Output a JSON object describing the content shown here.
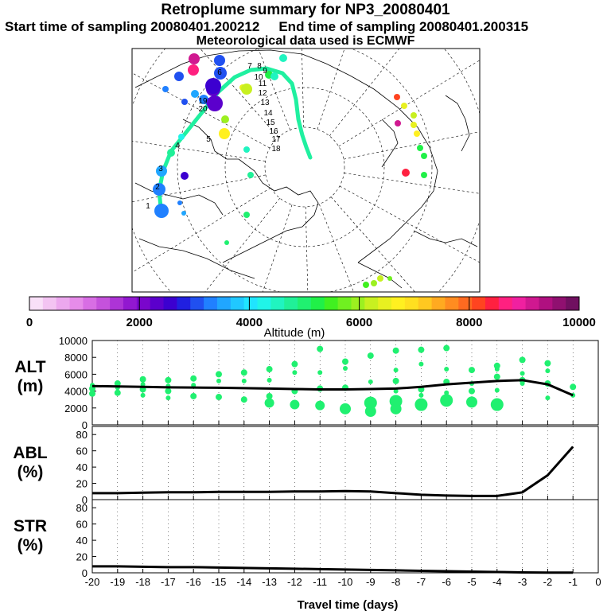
{
  "header": {
    "title": "Retroplume summary for NP3_20080401",
    "start_label": "Start time of sampling 20080401.200212",
    "end_label": "End time of sampling 20080401.200315",
    "met_label": "Meteorological data used is ECMWF"
  },
  "colorbar": {
    "ticks": [
      "0",
      "2000",
      "4000",
      "6000",
      "8000",
      "10000"
    ],
    "label": "Altitude (m)",
    "colors": [
      "#f9e0f8",
      "#f3c4f2",
      "#eca8ee",
      "#e68ce9",
      "#d86ee4",
      "#c552dc",
      "#ad34d6",
      "#9218d0",
      "#7a06cc",
      "#5b00cc",
      "#3c00d0",
      "#2020e0",
      "#2050f0",
      "#2080ff",
      "#20a6ff",
      "#20c8ff",
      "#20e4ff",
      "#20f4e8",
      "#20f4c0",
      "#20f098",
      "#20f070",
      "#20f048",
      "#40f020",
      "#70f020",
      "#9cf020",
      "#c8f020",
      "#e8f020",
      "#fff020",
      "#ffe020",
      "#ffc820",
      "#ffaa20",
      "#ff8c20",
      "#ff6a20",
      "#ff4420",
      "#ff2040",
      "#ff2080",
      "#f020a0",
      "#d01890",
      "#b01080",
      "#901070",
      "#701060"
    ]
  },
  "map_labels": [
    "1",
    "2",
    "3",
    "4",
    "5",
    "6",
    "7",
    "8",
    "9",
    "10",
    "11",
    "12",
    "13",
    "14",
    "15",
    "16",
    "17",
    "18",
    "19",
    "20"
  ],
  "chart_data": [
    {
      "type": "scatter",
      "name": "ALT",
      "ylabel": "ALT (m)",
      "ylim": [
        0,
        10000
      ],
      "yticks": [
        "0",
        "2000",
        "4000",
        "6000",
        "8000",
        "10000"
      ],
      "xlim": [
        -20,
        0
      ],
      "median_line": {
        "x": [
          -20,
          -19,
          -18,
          -17,
          -16,
          -15,
          -14,
          -13,
          -12,
          -11,
          -10,
          -9,
          -8,
          -7,
          -6,
          -5,
          -4,
          -3,
          -2,
          -1
        ],
        "y": [
          4600,
          4550,
          4500,
          4450,
          4420,
          4400,
          4350,
          4300,
          4250,
          4200,
          4200,
          4250,
          4300,
          4500,
          4800,
          5000,
          5200,
          5300,
          4800,
          3500
        ]
      },
      "clusters": [
        {
          "x": -20,
          "y": [
            4300,
            4700,
            3700
          ]
        },
        {
          "x": -19,
          "y": [
            4900,
            4400,
            3800
          ]
        },
        {
          "x": -18,
          "y": [
            5400,
            4800,
            4200,
            3500
          ]
        },
        {
          "x": -17,
          "y": [
            5300,
            4600,
            4000,
            3200
          ]
        },
        {
          "x": -16,
          "y": [
            5500,
            4700,
            3400
          ]
        },
        {
          "x": -15,
          "y": [
            6000,
            5200,
            3300
          ]
        },
        {
          "x": -14,
          "y": [
            6200,
            5200,
            3000
          ]
        },
        {
          "x": -13,
          "y": [
            6600,
            5300,
            3400,
            2600
          ]
        },
        {
          "x": -12,
          "y": [
            7200,
            6200,
            4000,
            2400
          ]
        },
        {
          "x": -11,
          "y": [
            9000,
            6200,
            4300,
            2300
          ]
        },
        {
          "x": -10,
          "y": [
            7500,
            6700,
            4400,
            1900
          ]
        },
        {
          "x": -9,
          "y": [
            8200,
            5100,
            2600,
            1600
          ]
        },
        {
          "x": -8,
          "y": [
            8800,
            6500,
            5200,
            4000,
            2800,
            1900
          ]
        },
        {
          "x": -7,
          "y": [
            8900,
            7200,
            4200,
            3500,
            2400
          ]
        },
        {
          "x": -6,
          "y": [
            9100,
            6600,
            5100,
            3800,
            2900
          ]
        },
        {
          "x": -5,
          "y": [
            6500,
            4900,
            4000,
            2700
          ]
        },
        {
          "x": -4,
          "y": [
            7000,
            6600,
            5700,
            4100,
            2400
          ]
        },
        {
          "x": -3,
          "y": [
            7700,
            6100,
            5300,
            4900
          ]
        },
        {
          "x": -2,
          "y": [
            7300,
            6400,
            4900,
            3200
          ]
        },
        {
          "x": -1,
          "y": [
            4500,
            3500
          ]
        }
      ]
    },
    {
      "type": "line",
      "name": "ABL",
      "ylabel": "ABL (%)",
      "ylim": [
        0,
        90
      ],
      "yticks": [
        "0",
        "20",
        "40",
        "60",
        "80"
      ],
      "xlim": [
        -20,
        0
      ],
      "x": [
        -20,
        -19,
        -18,
        -17,
        -16,
        -15,
        -14,
        -13,
        -12,
        -11,
        -10,
        -9,
        -8,
        -7,
        -6,
        -5,
        -4,
        -3,
        -2,
        -1
      ],
      "y": [
        8,
        8,
        8.5,
        9,
        9,
        9.5,
        9.5,
        9.5,
        10,
        10,
        10.5,
        10,
        8,
        6,
        5,
        4.5,
        4.5,
        9,
        30,
        65
      ]
    },
    {
      "type": "line",
      "name": "STR",
      "ylabel": "STR (%)",
      "ylim": [
        0,
        90
      ],
      "yticks": [
        "0",
        "20",
        "40",
        "60",
        "80"
      ],
      "xlim": [
        -20,
        0
      ],
      "x": [
        -20,
        -19,
        -18,
        -17,
        -16,
        -15,
        -14,
        -13,
        -12,
        -11,
        -10,
        -9,
        -8,
        -7,
        -6,
        -5,
        -4,
        -3,
        -2,
        -1
      ],
      "y": [
        8,
        8,
        7.5,
        7,
        7,
        6.5,
        6,
        5.5,
        5,
        4.5,
        4,
        3.5,
        3,
        2.5,
        2,
        1.5,
        1,
        0.5,
        0.3,
        0.2
      ],
      "xticks": [
        "-20",
        "-19",
        "-18",
        "-17",
        "-16",
        "-15",
        "-14",
        "-13",
        "-12",
        "-11",
        "-10",
        "-9",
        "-8",
        "-7",
        "-6",
        "-5",
        "-4",
        "-3",
        "-2",
        "-1",
        "0"
      ],
      "xlabel": "Travel time (days)"
    }
  ]
}
